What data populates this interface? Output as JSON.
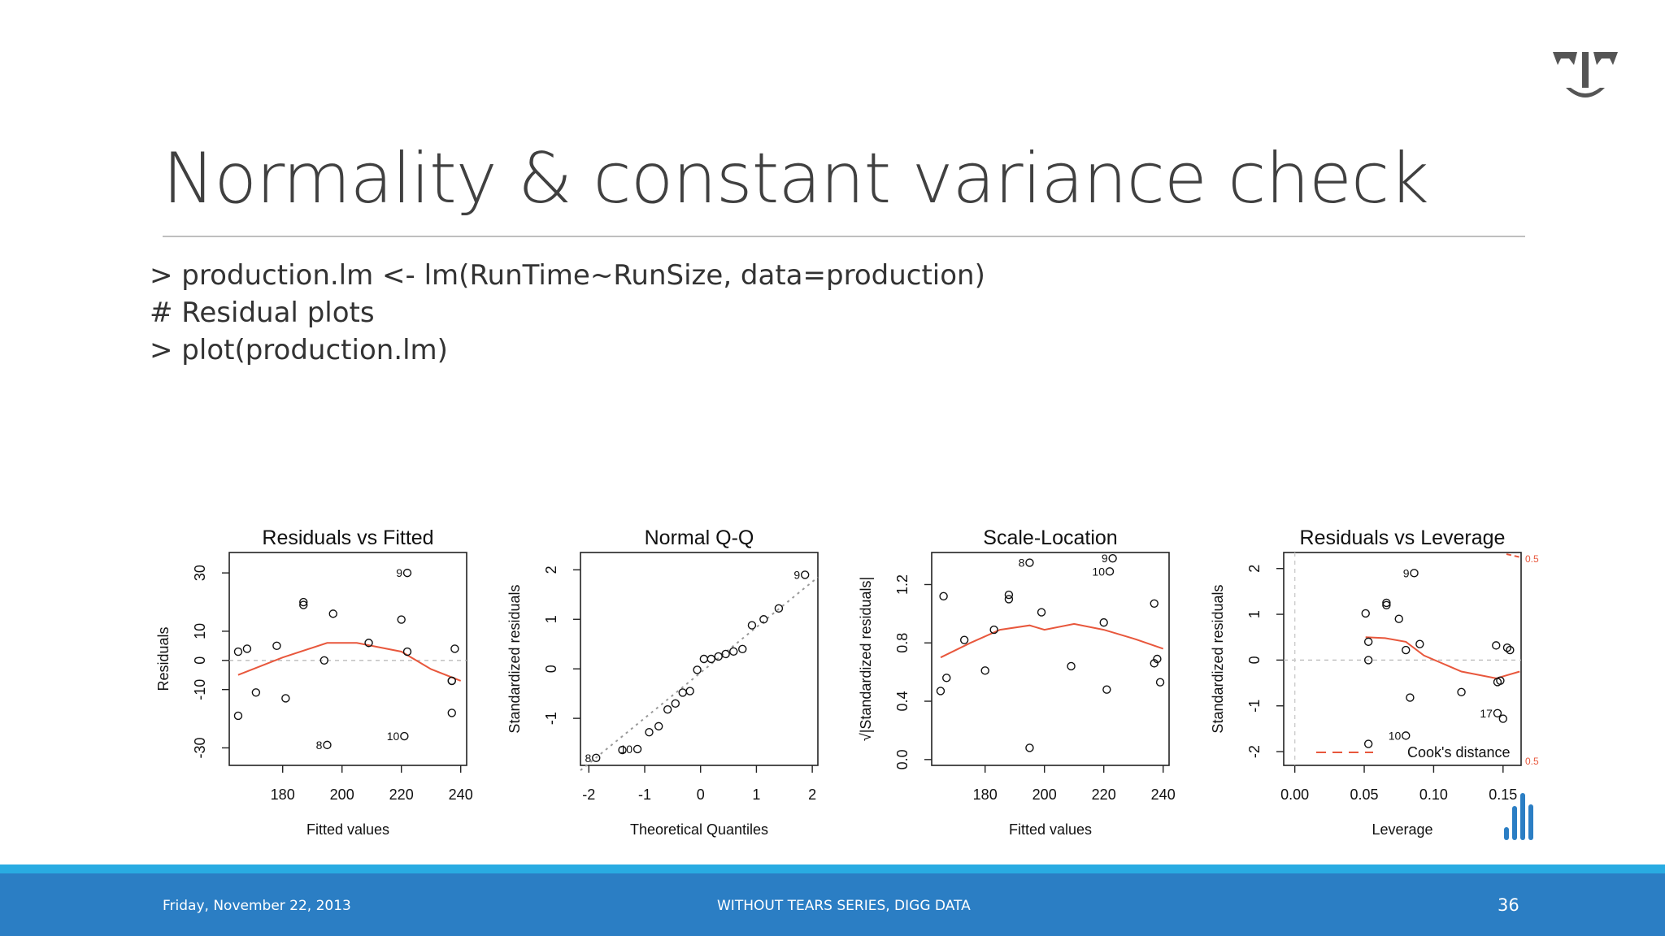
{
  "slide": {
    "title": "Normality & constant variance check",
    "code_lines": [
      "> production.lm <- lm(RunTime~RunSize, data=production)",
      "# Residual plots",
      "> plot(production.lm)"
    ],
    "footer_date": "Friday, November 22, 2013",
    "footer_center": "WITHOUT TEARS SERIES, DIGG DATA",
    "page_number": "36"
  },
  "colors": {
    "accent": "#2b7ec4",
    "stripe": "#29abe2",
    "smoother": "#e8573c",
    "title": "#404040"
  },
  "chart_data": [
    {
      "type": "scatter",
      "title": "Residuals vs Fitted",
      "xlabel": "Fitted values",
      "ylabel": "Residuals",
      "xlim": [
        162,
        242
      ],
      "ylim": [
        -36,
        37
      ],
      "xticks": [
        180,
        200,
        220,
        240
      ],
      "yticks": [
        -30,
        -10,
        0,
        10,
        30
      ],
      "refline": 0,
      "points": [
        [
          165,
          3
        ],
        [
          168,
          4
        ],
        [
          165,
          -19
        ],
        [
          171,
          -11
        ],
        [
          178,
          5
        ],
        [
          181,
          -13
        ],
        [
          187,
          20
        ],
        [
          187,
          19
        ],
        [
          194,
          0
        ],
        [
          197,
          16
        ],
        [
          195,
          -29
        ],
        [
          209,
          6
        ],
        [
          220,
          14
        ],
        [
          222,
          3
        ],
        [
          222,
          30
        ],
        [
          238,
          4
        ],
        [
          237,
          -7
        ],
        [
          237,
          -7
        ],
        [
          237,
          -18
        ],
        [
          221,
          -26
        ]
      ],
      "labels": [
        {
          "x": 222,
          "y": 30,
          "text": "9"
        },
        {
          "x": 195,
          "y": -29,
          "text": "8"
        },
        {
          "x": 221,
          "y": -26,
          "text": "10"
        }
      ],
      "smooth": [
        [
          165,
          -5
        ],
        [
          180,
          1
        ],
        [
          195,
          6
        ],
        [
          205,
          6
        ],
        [
          220,
          3
        ],
        [
          230,
          -3
        ],
        [
          240,
          -7
        ]
      ]
    },
    {
      "type": "scatter",
      "title": "Normal Q-Q",
      "xlabel": "Theoretical Quantiles",
      "ylabel": "Standardized residuals",
      "xlim": [
        -2.15,
        2.1
      ],
      "ylim": [
        -1.95,
        2.35
      ],
      "xticks": [
        -2,
        -1,
        0,
        1,
        2
      ],
      "yticks": [
        -1,
        0,
        1,
        2
      ],
      "points": [
        [
          -1.87,
          -1.8
        ],
        [
          -1.4,
          -1.64
        ],
        [
          -1.13,
          -1.62
        ],
        [
          -0.92,
          -1.28
        ],
        [
          -0.75,
          -1.16
        ],
        [
          -0.59,
          -0.82
        ],
        [
          -0.45,
          -0.7
        ],
        [
          -0.32,
          -0.48
        ],
        [
          -0.19,
          -0.45
        ],
        [
          -0.06,
          -0.02
        ],
        [
          0.06,
          0.2
        ],
        [
          0.19,
          0.2
        ],
        [
          0.32,
          0.25
        ],
        [
          0.45,
          0.3
        ],
        [
          0.59,
          0.35
        ],
        [
          0.75,
          0.4
        ],
        [
          0.92,
          0.88
        ],
        [
          1.13,
          1.0
        ],
        [
          1.4,
          1.22
        ],
        [
          1.87,
          1.9
        ]
      ],
      "labels": [
        {
          "x": 1.87,
          "y": 1.9,
          "text": "9"
        },
        {
          "x": -1.87,
          "y": -1.8,
          "text": "8"
        },
        {
          "x": -1.13,
          "y": -1.62,
          "text": "10"
        }
      ],
      "refline_slope": [
        [
          -2.15,
          -2.05
        ],
        [
          2.1,
          1.85
        ]
      ]
    },
    {
      "type": "scatter",
      "title": "Scale-Location",
      "xlabel": "Fitted values",
      "ylabel": "√|Standardized residuals|",
      "xlim": [
        162,
        242
      ],
      "ylim": [
        -0.04,
        1.42
      ],
      "xticks": [
        180,
        200,
        220,
        240
      ],
      "yticks": [
        0.0,
        0.4,
        0.8,
        1.2
      ],
      "points": [
        [
          165,
          0.47
        ],
        [
          166,
          1.12
        ],
        [
          167,
          0.56
        ],
        [
          173,
          0.82
        ],
        [
          180,
          0.61
        ],
        [
          183,
          0.89
        ],
        [
          188,
          1.1
        ],
        [
          188,
          1.13
        ],
        [
          195,
          1.35
        ],
        [
          195,
          0.08
        ],
        [
          199,
          1.01
        ],
        [
          209,
          0.64
        ],
        [
          220,
          0.94
        ],
        [
          221,
          0.48
        ],
        [
          222,
          1.29
        ],
        [
          223,
          1.38
        ],
        [
          237,
          1.07
        ],
        [
          237,
          0.66
        ],
        [
          238,
          0.69
        ],
        [
          239,
          0.53
        ]
      ],
      "labels": [
        {
          "x": 195,
          "y": 1.35,
          "text": "8"
        },
        {
          "x": 223,
          "y": 1.38,
          "text": "9"
        },
        {
          "x": 222,
          "y": 1.29,
          "text": "10"
        }
      ],
      "smooth": [
        [
          165,
          0.7
        ],
        [
          175,
          0.8
        ],
        [
          185,
          0.89
        ],
        [
          195,
          0.92
        ],
        [
          200,
          0.89
        ],
        [
          210,
          0.93
        ],
        [
          220,
          0.89
        ],
        [
          230,
          0.83
        ],
        [
          240,
          0.76
        ]
      ]
    },
    {
      "type": "scatter",
      "title": "Residuals vs Leverage",
      "xlabel": "Leverage",
      "ylabel": "Standardized residuals",
      "xlim": [
        -0.008,
        0.163
      ],
      "ylim": [
        -2.3,
        2.35
      ],
      "xticks": [
        0.0,
        0.05,
        0.1,
        0.15
      ],
      "xticklabels": [
        "0.00",
        "0.05",
        "0.10",
        "0.15"
      ],
      "yticks": [
        -2,
        -1,
        0,
        1,
        2
      ],
      "refline": 0,
      "points": [
        [
          0.051,
          1.02
        ],
        [
          0.053,
          0.4
        ],
        [
          0.053,
          0.0
        ],
        [
          0.066,
          1.25
        ],
        [
          0.066,
          1.2
        ],
        [
          0.075,
          0.9
        ],
        [
          0.08,
          0.22
        ],
        [
          0.083,
          -0.82
        ],
        [
          0.086,
          1.9
        ],
        [
          0.09,
          0.35
        ],
        [
          0.12,
          -0.7
        ],
        [
          0.145,
          0.32
        ],
        [
          0.146,
          -0.48
        ],
        [
          0.148,
          -0.45
        ],
        [
          0.153,
          0.27
        ],
        [
          0.155,
          0.22
        ],
        [
          0.146,
          -1.16
        ],
        [
          0.15,
          -1.28
        ],
        [
          0.08,
          -1.65
        ],
        [
          0.053,
          -1.83
        ]
      ],
      "labels": [
        {
          "x": 0.086,
          "y": 1.9,
          "text": "9"
        },
        {
          "x": 0.08,
          "y": -1.65,
          "text": "10"
        },
        {
          "x": 0.146,
          "y": -1.16,
          "text": "17"
        }
      ],
      "smooth": [
        [
          0.051,
          0.5
        ],
        [
          0.065,
          0.48
        ],
        [
          0.08,
          0.4
        ],
        [
          0.093,
          0.1
        ],
        [
          0.12,
          -0.25
        ],
        [
          0.145,
          -0.4
        ],
        [
          0.162,
          -0.25
        ]
      ],
      "legend": "Cook's distance",
      "cook_labels": [
        "0.5",
        "0.5"
      ]
    }
  ]
}
